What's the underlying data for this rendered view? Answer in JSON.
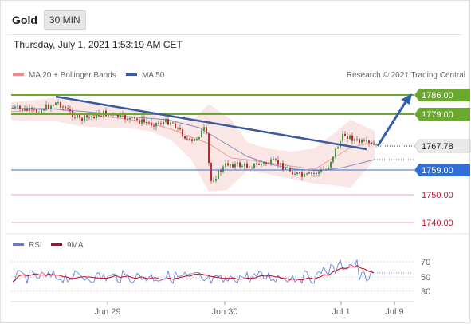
{
  "header": {
    "asset": "Gold",
    "timeframe": "30 MIN"
  },
  "timestamp": "Thursday, July 1, 2021 1:53:19 AM CET",
  "legend": {
    "ma20": "MA 20 + Bollinger Bands",
    "ma50": "MA 50",
    "credit": "Research © 2021 Trading Central"
  },
  "colors": {
    "resistance": "#6aa92e",
    "support": "#2f6fd6",
    "bearish": "#e04545",
    "current": "#222222",
    "trend": "#3a5aa0",
    "arrow": "#2f5fa8"
  },
  "chart_data": {
    "type": "line",
    "levels": [
      {
        "label": "1786.00",
        "value": 1786.0,
        "kind": "resistance"
      },
      {
        "label": "1779.00",
        "value": 1779.0,
        "kind": "resistance"
      },
      {
        "label": "1767.78",
        "value": 1767.78,
        "kind": "current"
      },
      {
        "label": "1759.00",
        "value": 1759.0,
        "kind": "support"
      },
      {
        "label": "1750.00",
        "value": 1750.0,
        "kind": "target"
      },
      {
        "label": "1740.00",
        "value": 1740.0,
        "kind": "target"
      }
    ],
    "x_ticks": [
      "Jun 29",
      "Jun 30",
      "Jul 1",
      "Jul 9"
    ],
    "rsi": {
      "legend_rsi": "RSI",
      "legend_ma": "9MA",
      "levels": [
        "70",
        "50",
        "30"
      ]
    },
    "series": [
      {
        "name": "MA 20 + Bollinger Bands"
      },
      {
        "name": "MA 50"
      }
    ]
  }
}
